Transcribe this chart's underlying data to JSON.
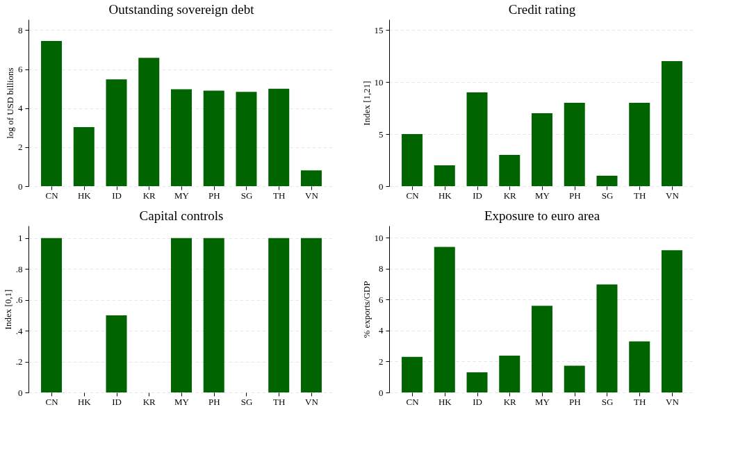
{
  "chart_data": [
    {
      "type": "bar",
      "title": "Outstanding sovereign debt",
      "ylabel": "log of USD billions",
      "categories": [
        "CN",
        "HK",
        "ID",
        "KR",
        "MY",
        "PH",
        "SG",
        "TH",
        "VN"
      ],
      "color": "#006400",
      "values": [
        7.45,
        3.03,
        5.48,
        6.58,
        4.97,
        4.9,
        4.84,
        5.0,
        0.81
      ],
      "ylim": [
        0,
        8.55
      ],
      "yticks": [
        0,
        2,
        4,
        6,
        8
      ],
      "grid": "y"
    },
    {
      "type": "bar",
      "title": "Credit rating",
      "ylabel": "Index [1,21]",
      "categories": [
        "CN",
        "HK",
        "ID",
        "KR",
        "MY",
        "PH",
        "SG",
        "TH",
        "VN"
      ],
      "color": "#006400",
      "values": [
        5,
        2,
        9,
        3,
        7,
        8,
        1,
        8,
        12
      ],
      "ylim": [
        0,
        16
      ],
      "yticks": [
        0,
        5,
        10,
        15
      ],
      "grid": "y"
    },
    {
      "type": "bar",
      "title": "Capital controls",
      "ylabel": "Index [0,1]",
      "categories": [
        "CN",
        "HK",
        "ID",
        "KR",
        "MY",
        "PH",
        "SG",
        "TH",
        "VN"
      ],
      "color": "#006400",
      "values": [
        1,
        0,
        0.5,
        0,
        1,
        1,
        0,
        1,
        1
      ],
      "ylim": [
        0,
        1.08
      ],
      "yticks": [
        0,
        {
          "value": 0.2,
          "label": ".2"
        },
        {
          "value": 0.4,
          "label": ".4"
        },
        {
          "value": 0.6,
          "label": ".6"
        },
        {
          "value": 0.8,
          "label": ".8"
        },
        1
      ],
      "grid": "y"
    },
    {
      "type": "bar",
      "title": "Exposure to euro area",
      "ylabel": "% exports/GDP",
      "categories": [
        "CN",
        "HK",
        "ID",
        "KR",
        "MY",
        "PH",
        "SG",
        "TH",
        "VN"
      ],
      "color": "#006400",
      "values": [
        2.3,
        9.4,
        1.3,
        2.38,
        5.6,
        1.73,
        6.98,
        3.3,
        9.19
      ],
      "ylim": [
        0,
        10.77
      ],
      "yticks": [
        0,
        2,
        4,
        6,
        8,
        10
      ],
      "grid": "y"
    }
  ]
}
